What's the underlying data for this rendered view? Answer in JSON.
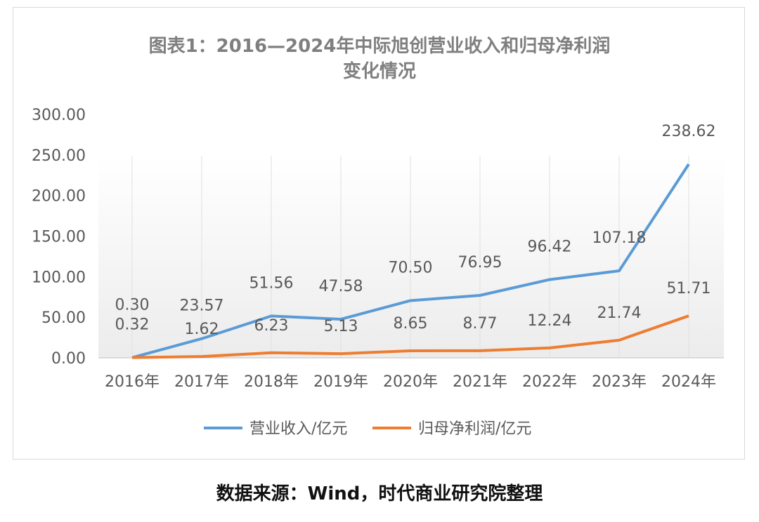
{
  "chart_data": {
    "type": "line",
    "title_line1": "图表1：2016—2024年中际旭创营业收入和归母净利润",
    "title_line2": "变化情况",
    "categories": [
      "2016年",
      "2017年",
      "2018年",
      "2019年",
      "2020年",
      "2021年",
      "2022年",
      "2023年",
      "2024年"
    ],
    "series": [
      {
        "name": "营业收入/亿元",
        "color": "#5b9bd5",
        "values": [
          0.32,
          23.57,
          51.56,
          47.58,
          70.5,
          76.95,
          96.42,
          107.18,
          238.62
        ]
      },
      {
        "name": "归母净利润/亿元",
        "color": "#ed7d31",
        "values": [
          0.3,
          1.62,
          6.23,
          5.13,
          8.65,
          8.77,
          12.24,
          21.74,
          51.71
        ]
      }
    ],
    "ylim": [
      0,
      300
    ],
    "yticks": [
      "0.00",
      "50.00",
      "100.00",
      "150.00",
      "200.00",
      "250.00",
      "300.00"
    ],
    "grid": "vertical category lines",
    "legend": "bottom"
  },
  "source": "数据来源：Wind，时代商业研究院整理"
}
